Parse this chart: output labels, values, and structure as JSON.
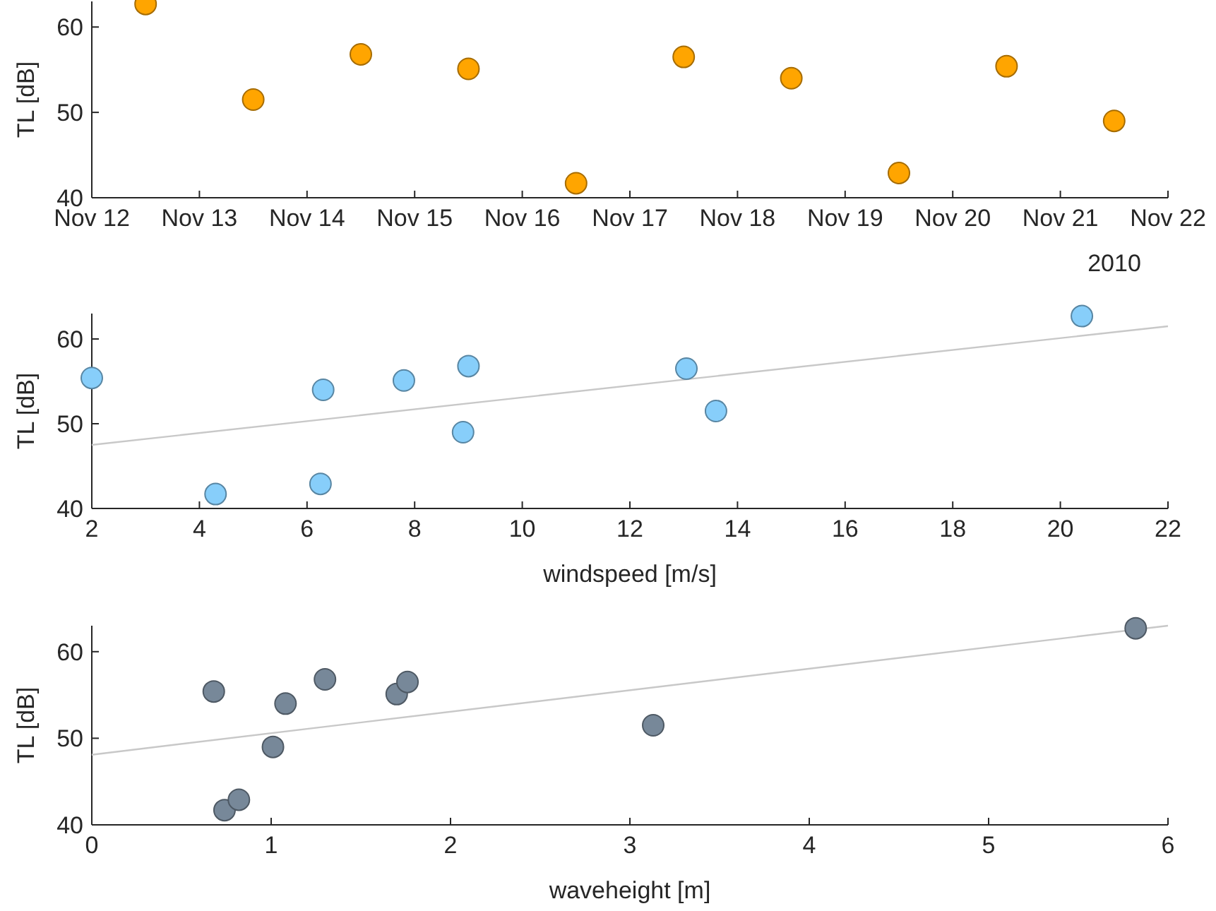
{
  "chart_data": [
    {
      "type": "scatter",
      "ylabel": "TL [dB]",
      "marker": "circle",
      "xlim": [
        "2010-11-12",
        "2010-11-22"
      ],
      "ylim": [
        40,
        63
      ],
      "yticks": [
        40,
        50,
        60
      ],
      "xticks": [
        {
          "value": "2010-11-12",
          "label": "Nov 12"
        },
        {
          "value": "2010-11-13",
          "label": "Nov 13"
        },
        {
          "value": "2010-11-14",
          "label": "Nov 14"
        },
        {
          "value": "2010-11-15",
          "label": "Nov 15"
        },
        {
          "value": "2010-11-16",
          "label": "Nov 16"
        },
        {
          "value": "2010-11-17",
          "label": "Nov 17"
        },
        {
          "value": "2010-11-18",
          "label": "Nov 18"
        },
        {
          "value": "2010-11-19",
          "label": "Nov 19"
        },
        {
          "value": "2010-11-20",
          "label": "Nov 20"
        },
        {
          "value": "2010-11-21",
          "label": "Nov 21"
        },
        {
          "value": "2010-11-22",
          "label": "Nov 22"
        }
      ],
      "annotations": [
        "2010"
      ],
      "series": [
        {
          "color": "#ffa500",
          "x": [
            "2010-11-12T12:00",
            "2010-11-13T12:00",
            "2010-11-14T12:00",
            "2010-11-15T12:00",
            "2010-11-16T12:00",
            "2010-11-17T12:00",
            "2010-11-18T12:00",
            "2010-11-19T12:00",
            "2010-11-20T12:00",
            "2010-11-21T12:00"
          ],
          "values": [
            62.7,
            51.5,
            56.8,
            55.1,
            41.7,
            56.5,
            54.0,
            42.9,
            55.4,
            49.0
          ]
        }
      ]
    },
    {
      "type": "scatter",
      "ylabel": "TL [dB]",
      "xlabel": "windspeed [m/s]",
      "marker": "circle",
      "xlim": [
        2,
        22
      ],
      "ylim": [
        40,
        63
      ],
      "yticks": [
        40,
        50,
        60
      ],
      "xticks": [
        2,
        4,
        6,
        8,
        10,
        12,
        14,
        16,
        18,
        20,
        22
      ],
      "series": [
        {
          "type": "line",
          "marker": "none",
          "color": "#c8c8c8",
          "x": [
            2,
            22
          ],
          "values": [
            47.5,
            61.5
          ]
        },
        {
          "color": "#87cefa",
          "x": [
            2.0,
            4.3,
            6.25,
            6.3,
            7.8,
            8.9,
            9.0,
            13.05,
            13.6,
            20.4
          ],
          "values": [
            55.4,
            41.7,
            42.9,
            54.0,
            55.1,
            49.0,
            56.8,
            56.5,
            51.5,
            62.7
          ]
        }
      ]
    },
    {
      "type": "scatter",
      "ylabel": "TL [dB]",
      "xlabel": "waveheight [m]",
      "marker": "circle",
      "xlim": [
        0,
        6
      ],
      "ylim": [
        40,
        63
      ],
      "yticks": [
        40,
        50,
        60
      ],
      "xticks": [
        0,
        1,
        2,
        3,
        4,
        5,
        6
      ],
      "series": [
        {
          "type": "line",
          "marker": "none",
          "color": "#c8c8c8",
          "x": [
            0,
            6
          ],
          "values": [
            48.1,
            63.0
          ]
        },
        {
          "color": "#778899",
          "x": [
            0.68,
            0.74,
            0.82,
            1.01,
            1.08,
            1.3,
            1.7,
            1.76,
            3.13,
            5.82
          ],
          "values": [
            55.4,
            41.7,
            42.9,
            49.0,
            54.0,
            56.8,
            55.1,
            56.5,
            51.5,
            62.7
          ]
        }
      ]
    }
  ]
}
